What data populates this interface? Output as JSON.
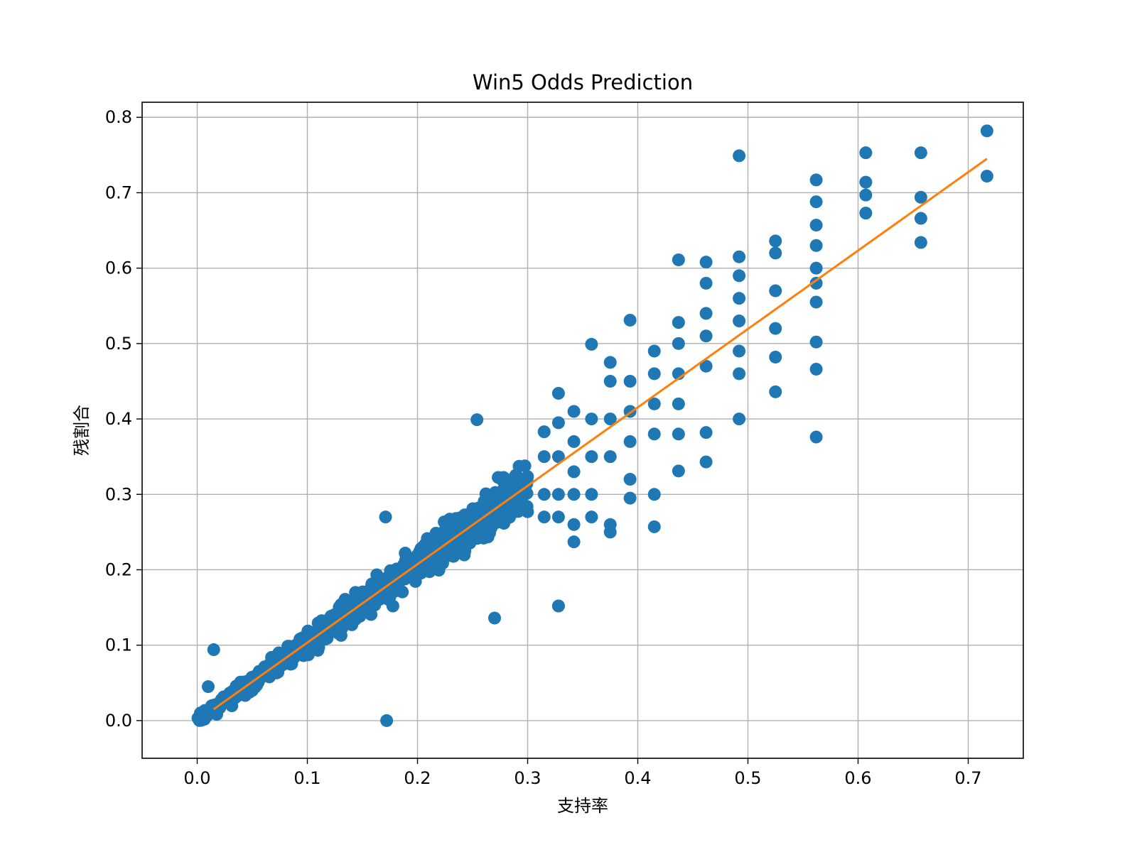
{
  "chart_data": {
    "type": "scatter",
    "title": "Win5 Odds Prediction",
    "xlabel": "支持率",
    "ylabel": "残割合",
    "xlim": [
      -0.05,
      0.75
    ],
    "ylim": [
      -0.05,
      0.82
    ],
    "xticks": [
      "0.0",
      "0.1",
      "0.2",
      "0.3",
      "0.4",
      "0.5",
      "0.6",
      "0.7"
    ],
    "yticks": [
      "0.0",
      "0.1",
      "0.2",
      "0.3",
      "0.4",
      "0.5",
      "0.6",
      "0.7",
      "0.8"
    ],
    "grid": true,
    "colors": {
      "points": "#1f77b4",
      "fit_line": "#ff7f0e",
      "grid": "#b0b0b0"
    },
    "fit_line": {
      "x": [
        0.015,
        0.717
      ],
      "y": [
        0.015,
        0.745
      ]
    },
    "outliers": {
      "x": [
        0.717,
        0.717,
        0.492,
        0.607,
        0.607,
        0.607,
        0.607,
        0.657,
        0.657,
        0.657,
        0.657,
        0.562,
        0.562,
        0.562,
        0.562,
        0.562,
        0.562,
        0.562,
        0.562,
        0.562,
        0.562,
        0.525,
        0.525,
        0.525,
        0.525,
        0.525,
        0.525,
        0.492,
        0.492,
        0.492,
        0.492,
        0.492,
        0.492,
        0.492,
        0.462,
        0.462,
        0.462,
        0.462,
        0.462,
        0.462,
        0.462,
        0.437,
        0.437,
        0.437,
        0.437,
        0.437,
        0.437,
        0.437,
        0.415,
        0.415,
        0.415,
        0.415,
        0.415,
        0.415,
        0.393,
        0.393,
        0.393,
        0.393,
        0.393,
        0.393,
        0.375,
        0.375,
        0.375,
        0.375,
        0.375,
        0.375,
        0.358,
        0.358,
        0.358,
        0.358,
        0.358,
        0.342,
        0.342,
        0.342,
        0.342,
        0.342,
        0.342,
        0.328,
        0.328,
        0.328,
        0.328,
        0.328,
        0.328,
        0.315,
        0.315,
        0.315,
        0.315,
        0.172,
        0.254,
        0.171,
        0.328,
        0.27,
        0.015,
        0.01
      ],
      "y": [
        0.782,
        0.722,
        0.749,
        0.753,
        0.714,
        0.697,
        0.673,
        0.753,
        0.694,
        0.666,
        0.634,
        0.717,
        0.688,
        0.657,
        0.63,
        0.6,
        0.58,
        0.555,
        0.502,
        0.466,
        0.376,
        0.636,
        0.62,
        0.57,
        0.52,
        0.482,
        0.436,
        0.615,
        0.59,
        0.56,
        0.53,
        0.49,
        0.46,
        0.4,
        0.608,
        0.58,
        0.54,
        0.51,
        0.47,
        0.382,
        0.343,
        0.611,
        0.528,
        0.5,
        0.46,
        0.42,
        0.38,
        0.331,
        0.49,
        0.46,
        0.42,
        0.38,
        0.3,
        0.257,
        0.531,
        0.45,
        0.41,
        0.37,
        0.32,
        0.295,
        0.475,
        0.45,
        0.4,
        0.35,
        0.26,
        0.25,
        0.499,
        0.4,
        0.35,
        0.3,
        0.27,
        0.41,
        0.37,
        0.33,
        0.3,
        0.26,
        0.237,
        0.434,
        0.395,
        0.35,
        0.3,
        0.27,
        0.152,
        0.383,
        0.35,
        0.3,
        0.27,
        0.0,
        0.399,
        0.27,
        0.152,
        0.136,
        0.094,
        0.045
      ]
    },
    "cluster": {
      "x_min": 0.0,
      "x_max": 0.3,
      "description_points": 900
    }
  }
}
